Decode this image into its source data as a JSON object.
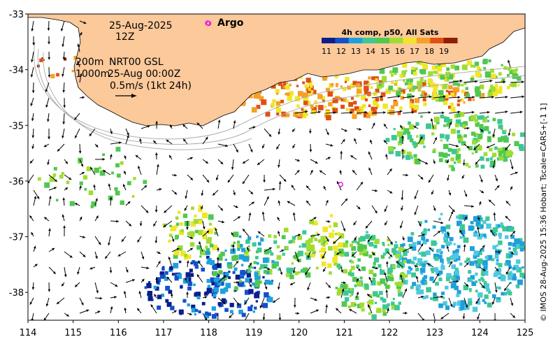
{
  "map": {
    "date_label": "25-Aug-2025",
    "time_label": "12Z",
    "depth_label": "200m",
    "product_label": "NRT00 GSL",
    "isobath_label": "1000m",
    "current_time_label": "25-Aug 00:00Z",
    "scale_label": "0.5m/s (1kt 24h)",
    "argo_label": "Argo",
    "credit": "© IMOS 28-Aug-2025 15:36 Hobart; Tscale=CARS+[-1 1]",
    "x_ticks": [
      "114",
      "115",
      "116",
      "117",
      "118",
      "119",
      "120",
      "121",
      "122",
      "123",
      "124",
      "125"
    ],
    "y_ticks": [
      "-33",
      "-34",
      "-35",
      "-36",
      "-37",
      "-38"
    ],
    "argo_floats": [
      {
        "lon": 118.0,
        "lat": -33.17
      },
      {
        "lon": 120.92,
        "lat": -36.06
      }
    ]
  },
  "legend": {
    "title": "4h comp, p50, All Sats",
    "ticks": [
      "11",
      "12",
      "13",
      "14",
      "15",
      "16",
      "17",
      "18",
      "19"
    ],
    "colors": [
      "#0a1e8c",
      "#1450c8",
      "#1ea0dc",
      "#3cc896",
      "#50c850",
      "#a0dc32",
      "#f0e628",
      "#f5a028",
      "#e05014",
      "#8c1e0a"
    ]
  },
  "colors": {
    "land": "#fbc99a",
    "sea": "#ffffff"
  }
}
